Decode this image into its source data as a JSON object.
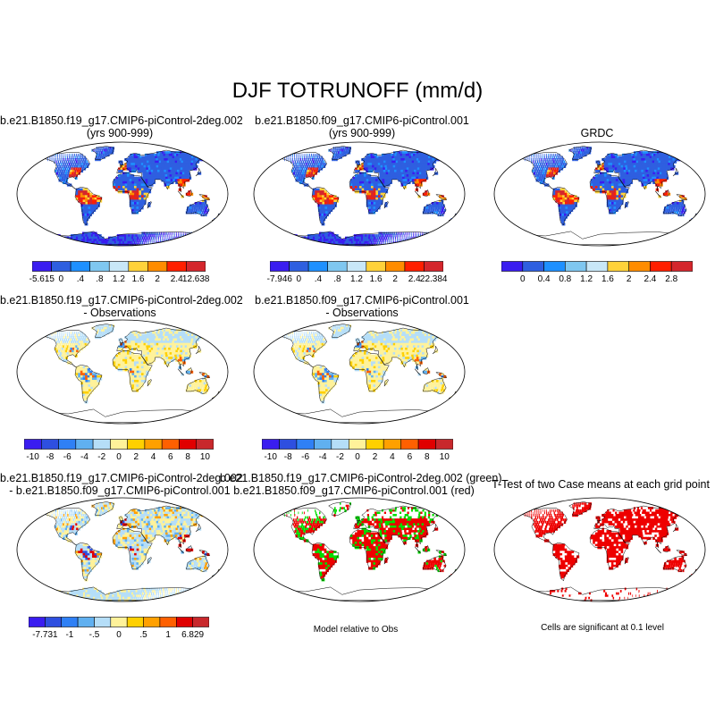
{
  "title": "DJF TOTRUNOFF (mm/d)",
  "colors": {
    "abs_palette": [
      "#3a1df0",
      "#2e5fe0",
      "#1e90ff",
      "#7fc7f0",
      "#c8e7f7",
      "#ffd23a",
      "#ff8c00",
      "#ff1f00",
      "#d4262c"
    ],
    "diff_palette": [
      "#3a1df0",
      "#2e4fe0",
      "#2f80f5",
      "#60b0f0",
      "#b5def8",
      "#fff29a",
      "#ffd000",
      "#ffa000",
      "#ff6000",
      "#e00000",
      "#c8282c"
    ],
    "land_outline": "#000000",
    "signif_red": "#ee0000",
    "green": "#00dd00"
  },
  "panels": [
    {
      "title_line1": "b.e21.B1850.f19_g17.CMIP6-piControl-2deg.002",
      "title_line2": "(yrs 900-999)",
      "fill_type": "abs-bias",
      "colorbar": {
        "labels": [
          "-5.615",
          "0",
          ".4",
          ".8",
          "1.2",
          "1.6",
          "2",
          "2.4",
          "12.638"
        ],
        "palette": "abs"
      }
    },
    {
      "title_line1": "b.e21.B1850.f09_g17.CMIP6-piControl.001",
      "title_line2": "(yrs 900-999)",
      "fill_type": "abs-bias",
      "colorbar": {
        "labels": [
          "-7.946",
          "0",
          ".4",
          ".8",
          "1.2",
          "1.6",
          "2",
          "2.4",
          "22.384"
        ],
        "palette": "abs"
      }
    },
    {
      "title_line1": "GRDC",
      "title_line2": "",
      "fill_type": "abs-obs",
      "colorbar": {
        "labels": [
          "0",
          "0.4",
          "0.8",
          "1.2",
          "1.6",
          "2",
          "2.4",
          "2.8"
        ],
        "palette": "abs"
      }
    },
    {
      "title_line1": "b.e21.B1850.f19_g17.CMIP6-piControl-2deg.002",
      "title_line2": "- Observations",
      "fill_type": "diff-obs",
      "colorbar": {
        "labels": [
          "-10",
          "-8",
          "-6",
          "-4",
          "-2",
          "0",
          "2",
          "4",
          "6",
          "8",
          "10"
        ],
        "palette": "diff"
      }
    },
    {
      "title_line1": "b.e21.B1850.f09_g17.CMIP6-piControl.001",
      "title_line2": "- Observations",
      "fill_type": "diff-obs",
      "colorbar": {
        "labels": [
          "-10",
          "-8",
          "-6",
          "-4",
          "-2",
          "0",
          "2",
          "4",
          "6",
          "8",
          "10"
        ],
        "palette": "diff"
      }
    },
    {
      "title_line1": "b.e21.B1850.f19_g17.CMIP6-piControl-2deg.002",
      "title_line2": "- b.e21.B1850.f09_g17.CMIP6-piControl.001",
      "fill_type": "diff-case",
      "colorbar": {
        "labels": [
          "-7.731",
          "-1",
          "-.5",
          "0",
          ".5",
          "1",
          "6.829"
        ],
        "palette": "diff"
      }
    },
    {
      "title_line1": "b.e21.B1850.f19_g17.CMIP6-piControl-2deg.002 (green)",
      "title_line2": "b.e21.B1850.f09_g17.CMIP6-piControl.001 (red)",
      "fill_type": "redgreen",
      "note": "Model relative to Obs"
    },
    {
      "title_line1": "T-Test of two Case means at each grid point",
      "title_line2": "",
      "fill_type": "ttest",
      "note": "Cells are significant at 0.1 level"
    }
  ]
}
